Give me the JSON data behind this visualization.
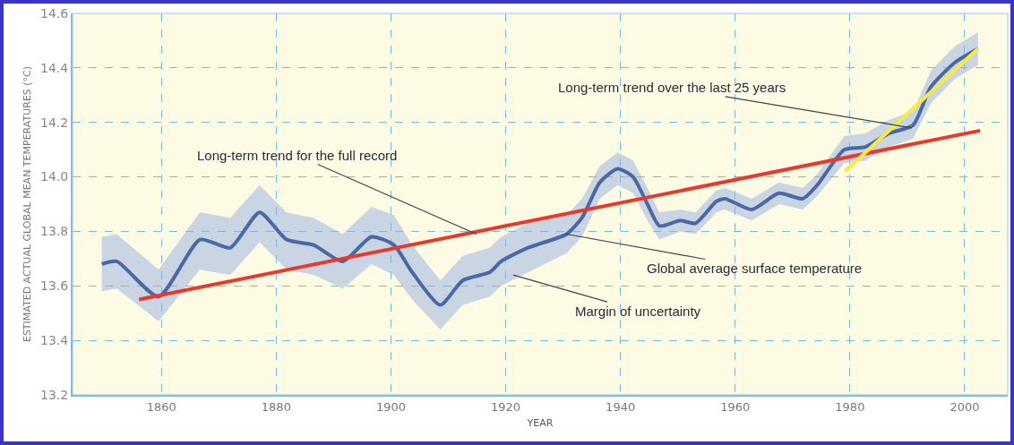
{
  "chart_data": {
    "type": "line",
    "xlabel": "YEAR",
    "ylabel": "ESTIMATED ACTUAL GLOBAL MEAN TEMPERATURES (°C)",
    "xlim": [
      1844.5,
      2007.5
    ],
    "xticks": [
      1860,
      1880,
      1900,
      1920,
      1940,
      1960,
      1980,
      2000
    ],
    "ylim": [
      13.2,
      14.6
    ],
    "yticks": [
      {
        "value": 13.2,
        "label": "13.2"
      },
      {
        "value": 13.4,
        "label": "13.4"
      },
      {
        "value": 13.6,
        "label": "13.6"
      },
      {
        "value": 13.8,
        "label": "13.8"
      },
      {
        "value": 14.0,
        "label": "14.0"
      },
      {
        "value": 14.2,
        "label": "14.2"
      },
      {
        "value": 14.4,
        "label": "14.4"
      },
      {
        "value": 14.6,
        "label": "14.6"
      }
    ],
    "grid": true,
    "line_style": "solid",
    "marker": "none",
    "series": [
      {
        "color": "#4a67a6",
        "x": [
          1849.6,
          1852.2,
          1859.5,
          1866.7,
          1872,
          1877.1,
          1881.8,
          1886.5,
          1891.6,
          1896.6,
          1900.5,
          1903.7,
          1908.6,
          1912.5,
          1917.2,
          1919.2,
          1923.9,
          1930.6,
          1933.3,
          1936.4,
          1939.5,
          1942.2,
          1944.7,
          1946.8,
          1950.4,
          1953.1,
          1956.7,
          1958.2,
          1962.9,
          1967.6,
          1971.8,
          1974.3,
          1979,
          1982.7,
          1986.8,
          1991,
          1994.1,
          1998.3,
          2002.3
        ],
        "values": [
          13.68,
          13.69,
          13.56,
          13.77,
          13.74,
          13.87,
          13.77,
          13.75,
          13.69,
          13.78,
          13.75,
          13.65,
          13.53,
          13.62,
          13.65,
          13.69,
          13.74,
          13.79,
          13.85,
          13.98,
          14.03,
          14.0,
          13.9,
          13.82,
          13.84,
          13.83,
          13.91,
          13.92,
          13.88,
          13.94,
          13.92,
          13.97,
          14.1,
          14.11,
          14.16,
          14.19,
          14.33,
          14.42,
          14.47
        ],
        "lower": [
          13.58,
          13.59,
          13.47,
          13.66,
          13.64,
          13.76,
          13.66,
          13.64,
          13.59,
          13.68,
          13.64,
          13.55,
          13.44,
          13.53,
          13.56,
          13.6,
          13.65,
          13.72,
          13.78,
          13.92,
          13.97,
          13.94,
          13.84,
          13.77,
          13.8,
          13.79,
          13.87,
          13.88,
          13.84,
          13.9,
          13.88,
          13.93,
          14.05,
          14.06,
          14.11,
          14.14,
          14.27,
          14.36,
          14.41
        ],
        "upper": [
          13.78,
          13.79,
          13.66,
          13.87,
          13.85,
          13.97,
          13.87,
          13.85,
          13.79,
          13.89,
          13.86,
          13.75,
          13.62,
          13.71,
          13.74,
          13.78,
          13.83,
          13.86,
          13.92,
          14.04,
          14.09,
          14.06,
          13.96,
          13.87,
          13.88,
          13.87,
          13.95,
          13.96,
          13.92,
          13.98,
          13.96,
          14.01,
          14.15,
          14.16,
          14.21,
          14.24,
          14.39,
          14.48,
          14.53
        ]
      },
      {
        "color": "#e8392a",
        "x": [
          1856.1,
          2002.7
        ],
        "values": [
          13.55,
          14.17
        ]
      },
      {
        "color": "#f7ea45",
        "x": [
          1979.1,
          2002.3
        ],
        "values": [
          14.02,
          14.47
        ]
      }
    ],
    "annotations": [
      {
        "text": "Long-term trend for the full record",
        "x": 1914.9,
        "y": 13.79
      },
      {
        "text": "Long-term trend over the last 25 years",
        "x": 1990.8,
        "y": 14.18
      },
      {
        "text": "Global average surface temperature",
        "x": 1930.6,
        "y": 13.79
      },
      {
        "text": "Margin of uncertainty",
        "x": 1921.3,
        "y": 13.64
      }
    ]
  }
}
